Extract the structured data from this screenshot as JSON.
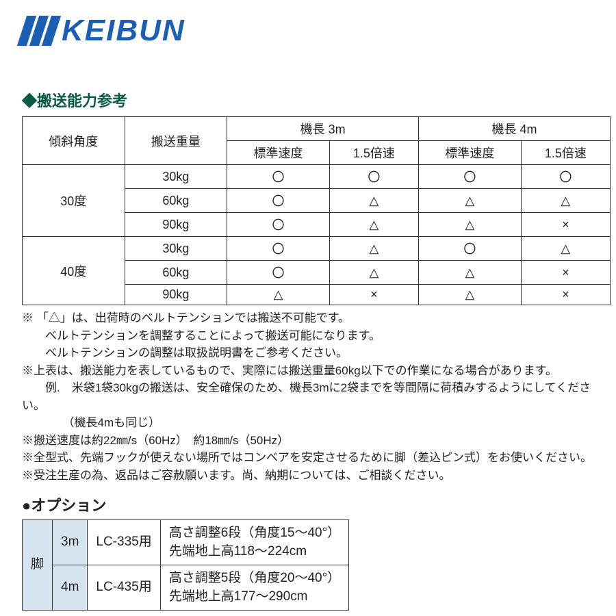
{
  "logo_text": "KEIBUN",
  "section_title": "◆搬送能力参考",
  "table": {
    "headers": {
      "angle": "傾斜角度",
      "weight": "搬送重量",
      "len3": "機長 3m",
      "len4": "機長 4m",
      "std": "標準速度",
      "fast": "1.5倍速"
    },
    "groups": [
      {
        "angle": "30度",
        "rows": [
          {
            "weight": "30kg",
            "c": [
              "〇",
              "〇",
              "〇",
              "〇"
            ]
          },
          {
            "weight": "60kg",
            "c": [
              "〇",
              "△",
              "△",
              "△"
            ]
          },
          {
            "weight": "90kg",
            "c": [
              "〇",
              "△",
              "△",
              "×"
            ]
          }
        ]
      },
      {
        "angle": "40度",
        "rows": [
          {
            "weight": "30kg",
            "c": [
              "〇",
              "△",
              "〇",
              "△"
            ]
          },
          {
            "weight": "60kg",
            "c": [
              "〇",
              "△",
              "△",
              "×"
            ]
          },
          {
            "weight": "90kg",
            "c": [
              "△",
              "×",
              "△",
              "×"
            ]
          }
        ]
      }
    ]
  },
  "notes": [
    "※ 「△」は、出荷時のベルトテンションでは搬送不可能です。",
    "　　ベルトテンションを調整することによって搬送可能になります。",
    "　　ベルトテンションの調整は取扱説明書をご参考ください。",
    "※上表は、搬送能力を表しているもので、実際には搬送重量60kg以下での作業になる場合があります。",
    "　　例.　米袋1袋30kgの搬送は、安全確保のため、機長3mに2袋までを等間隔に荷積みするようにしてください。",
    "　　　　（機長4mも同じ）",
    "※搬送速度は約22㎜/s（60Hz）　約18㎜/s（50Hz）",
    "※全型式、先端フックが使えない場所ではコンベアを安定させるために脚（差込ピン式）をお使いください。",
    "※受注生産の為、返品はご容赦願います。尚、納期については、ご相談ください。"
  ],
  "option_title": "●オプション",
  "option": {
    "label": "脚",
    "rows": [
      {
        "len": "3m",
        "model": "LC-335用",
        "desc": "高さ調整6段（角度15〜40°）\n先端地上高118〜224cm"
      },
      {
        "len": "4m",
        "model": "LC-435用",
        "desc": "高さ調整5段（角度20〜40°）\n先端地上高177〜290cm"
      }
    ]
  },
  "style": {
    "accent_color": "#0a5a4a",
    "logo_color": "#1a5fb4",
    "border_color": "#333333",
    "option_bg": "#d6e4f0"
  }
}
